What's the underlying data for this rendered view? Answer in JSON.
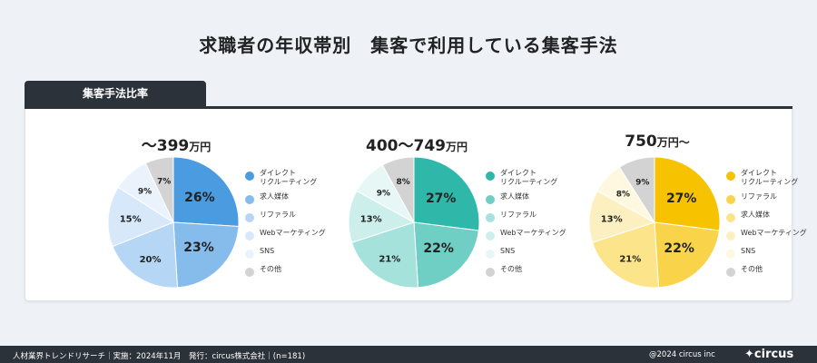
{
  "title": "求職者の年収帯別　集客で利用している集客手法",
  "tab_label": "集客手法比率",
  "footer": {
    "left": "人材業界トレンドリサーチ｜実施：2024年11月　発行：circus株式会社｜(n=181)",
    "copyright": "@2024 circus inc",
    "logo": "circus"
  },
  "chart_data": [
    {
      "type": "pie",
      "title_main": "〜399",
      "title_unit": "万円",
      "categories": [
        "ダイレクト\nリクルーティング",
        "求人媒体",
        "リファラル",
        "Webマーケティング",
        "SNS",
        "その他"
      ],
      "values": [
        26,
        23,
        20,
        15,
        9,
        7
      ],
      "labels": [
        "26%",
        "23%",
        "20%",
        "15%",
        "9%",
        "7%"
      ],
      "colors": [
        "#4a9be0",
        "#85bcec",
        "#b5d6f4",
        "#d6e8f9",
        "#eaf3fc",
        "#d3d3d3"
      ],
      "label_colors": [
        "#222222",
        "#222222",
        "#222222",
        "#222222",
        "#222222",
        "#222222"
      ]
    },
    {
      "type": "pie",
      "title_main": "400〜749",
      "title_unit": "万円",
      "categories": [
        "ダイレクト\nリクルーティング",
        "求人媒体",
        "リファラル",
        "Webマーケティング",
        "SNS",
        "その他"
      ],
      "values": [
        27,
        22,
        21,
        13,
        9,
        8
      ],
      "labels": [
        "27%",
        "22%",
        "21%",
        "13%",
        "9%",
        "8%"
      ],
      "colors": [
        "#2fb8aa",
        "#6fcfc5",
        "#a5e2db",
        "#cdefeb",
        "#e7f7f5",
        "#d3d3d3"
      ],
      "label_colors": [
        "#222222",
        "#222222",
        "#222222",
        "#222222",
        "#222222",
        "#222222"
      ]
    },
    {
      "type": "pie",
      "title_main": "750",
      "title_unit": "万円〜",
      "categories": [
        "ダイレクト\nリクルーティング",
        "リファラル",
        "求人媒体",
        "Webマーケティング",
        "SNS",
        "その他"
      ],
      "values": [
        27,
        22,
        21,
        13,
        8,
        9
      ],
      "labels": [
        "27%",
        "22%",
        "21%",
        "13%",
        "8%",
        "9%"
      ],
      "colors": [
        "#f7c200",
        "#f9d44a",
        "#fbe48a",
        "#fdf0c0",
        "#fef8e1",
        "#d3d3d3"
      ],
      "label_colors": [
        "#222222",
        "#222222",
        "#222222",
        "#222222",
        "#222222",
        "#222222"
      ]
    }
  ]
}
